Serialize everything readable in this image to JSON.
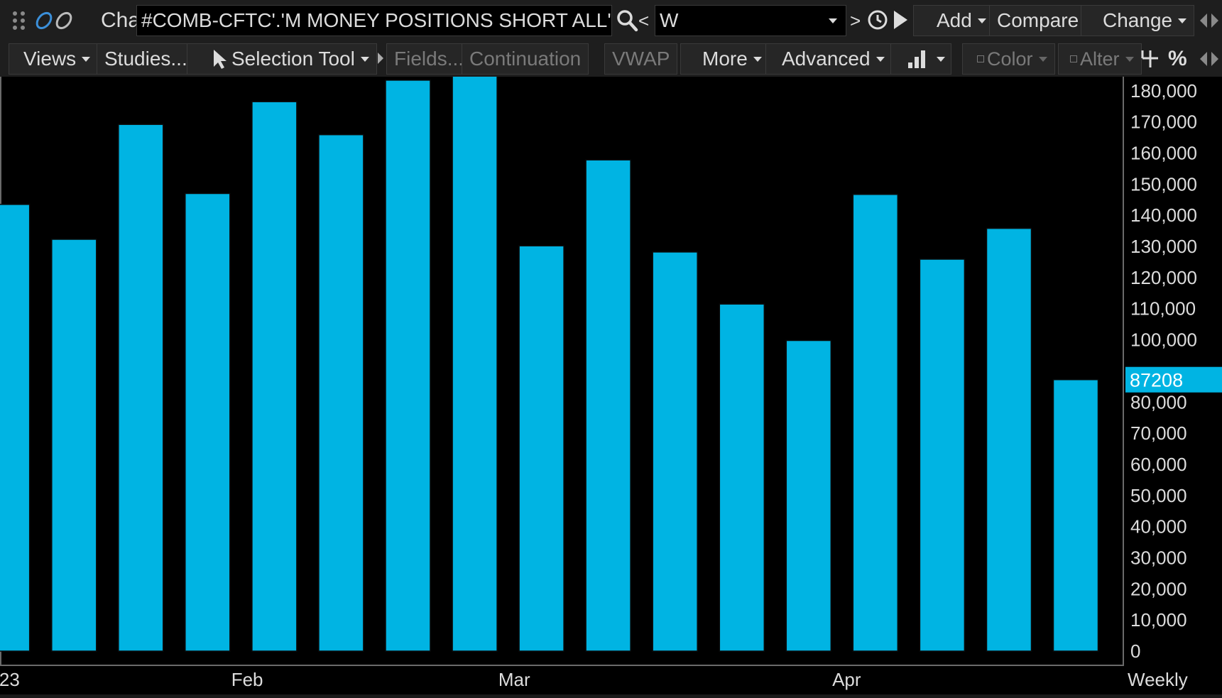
{
  "toolbar_top": {
    "chart_label": "Chart",
    "symbol": "#COMB-CFTC'.'M MONEY POSITIONS SHORT ALL'",
    "prev_label": "<",
    "aggregation": "W",
    "next_label": ">",
    "add_label": "Add",
    "compare_label": "Compare",
    "change_label": "Change"
  },
  "toolbar_second": {
    "views_label": "Views",
    "studies_label": "Studies...",
    "selection_tool_label": "Selection Tool",
    "fields_label": "Fields...",
    "continuation_label": "Continuation",
    "vwap_label": "VWAP",
    "more_label": "More",
    "advanced_label": "Advanced",
    "color_label": "Color",
    "alter_label": "Alter",
    "percent_label": "%"
  },
  "colors": {
    "bar_fill": "#00b4e3",
    "bar_stroke": "#0a0a0a",
    "background": "#000000",
    "text": "#dcdcdc"
  },
  "chart_data": {
    "type": "bar",
    "aggregation_label": "Weekly",
    "x_tick_labels": [
      "23",
      "Feb",
      "Mar",
      "Apr"
    ],
    "values": [
      143500,
      132300,
      169200,
      147000,
      176500,
      165900,
      183400,
      190000,
      130200,
      157800,
      128200,
      111500,
      99800,
      146700,
      125900,
      135800,
      87208
    ],
    "last_value_label": "87208",
    "y_ticks": [
      0,
      10000,
      20000,
      30000,
      40000,
      50000,
      60000,
      70000,
      80000,
      90000,
      100000,
      110000,
      120000,
      130000,
      140000,
      150000,
      160000,
      170000,
      180000
    ],
    "y_tick_labels": [
      "0",
      "10,000",
      "20,000",
      "30,000",
      "40,000",
      "50,000",
      "60,000",
      "70,000",
      "80,000",
      "",
      "100,000",
      "110,000",
      "120,000",
      "130,000",
      "140,000",
      "150,000",
      "160,000",
      "170,000",
      "180,000"
    ],
    "ylim": [
      0,
      190000
    ],
    "grid": false
  }
}
